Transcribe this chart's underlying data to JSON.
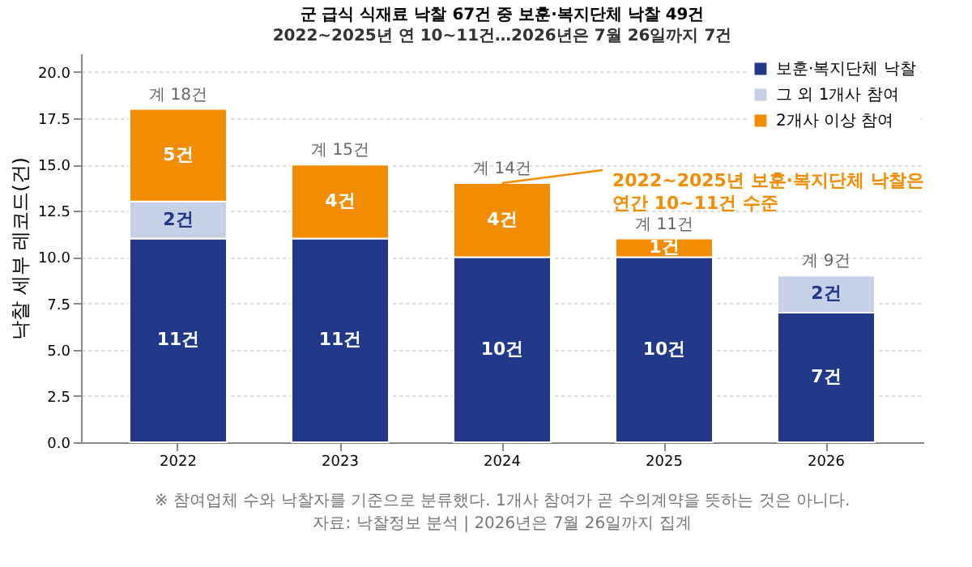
{
  "chart_data": {
    "type": "bar",
    "stacked": true,
    "title": "군 급식 식재료 낙찰 67건 중 보훈·복지단체 낙찰 49건",
    "subtitle": "2022~2025년 연 10~11건…2026년은 7월 26일까지 7건",
    "ylabel": "낙찰 세부 레코드(건)",
    "categories": [
      "2022",
      "2023",
      "2024",
      "2025",
      "2026"
    ],
    "series": [
      {
        "name": "보훈·복지단체 낙찰",
        "color": "#22398a",
        "values": [
          11,
          11,
          10,
          10,
          7
        ],
        "value_labels": [
          "11건",
          "11건",
          "10건",
          "10건",
          "7건"
        ]
      },
      {
        "name": "그 외 1개사 참여",
        "color": "#c6d1e8",
        "values": [
          2,
          0,
          0,
          0,
          2
        ],
        "value_labels": [
          "2건",
          null,
          null,
          null,
          "2건"
        ]
      },
      {
        "name": "2개사 이상 참여",
        "color": "#f28c00",
        "values": [
          5,
          4,
          4,
          1,
          0
        ],
        "value_labels": [
          "5건",
          "4건",
          "4건",
          "1건",
          null
        ]
      }
    ],
    "totals": [
      "계 18건",
      "계 15건",
      "계 14건",
      "계 11건",
      "계 9건"
    ],
    "ylim": [
      0,
      21
    ],
    "yticks": [
      {
        "value": 0,
        "label": "0.0"
      },
      {
        "value": 2.5,
        "label": "2.5"
      },
      {
        "value": 5,
        "label": "5.0"
      },
      {
        "value": 7.5,
        "label": "7.5"
      },
      {
        "value": 10,
        "label": "10.0"
      },
      {
        "value": 12.5,
        "label": "12.5"
      },
      {
        "value": 15,
        "label": "15.0"
      },
      {
        "value": 17.5,
        "label": "17.5"
      },
      {
        "value": 20,
        "label": "20.0"
      }
    ],
    "grid": "y",
    "legend": "top right",
    "annotations": [
      {
        "text": "2022~2025년 보훈·복지단체 낙찰은\n연간 10~11건 수준",
        "x": "2024",
        "y": 14
      },
      "※ 참여업체 수와 낙찰자를 기준으로 분류했다. 1개사 참여가 곧 수의계약을 뜻하는 것은 아니다.",
      "자료: 낙찰정보 분석 | 2026년은 7월 26일까지 집계"
    ]
  }
}
